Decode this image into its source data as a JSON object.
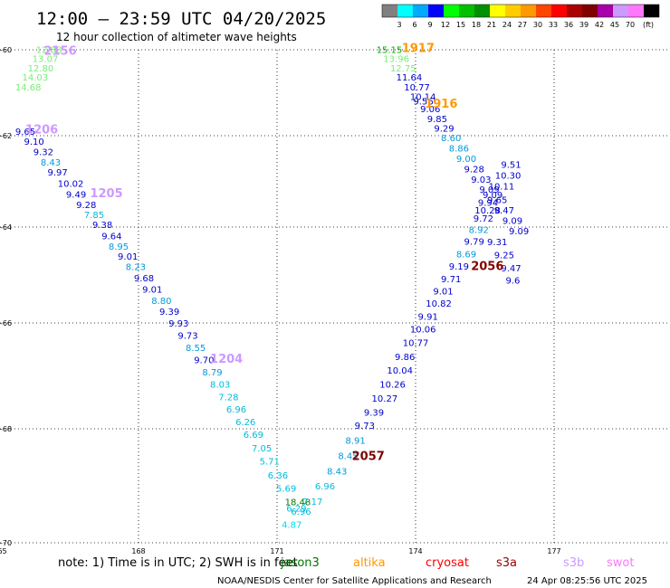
{
  "header": {
    "title": "12:00 – 23:59 UTC 04/20/2025",
    "subtitle": "12 hour collection of altimeter wave heights"
  },
  "legend": {
    "unit": "(ft)",
    "colors": [
      "#808080",
      "#00ffff",
      "#00aaff",
      "#0000ff",
      "#00ff00",
      "#00c000",
      "#009000",
      "#ffff00",
      "#ffcc00",
      "#ff9900",
      "#ff4400",
      "#ff0000",
      "#aa0000",
      "#800000",
      "#aa00aa",
      "#cc99ff",
      "#ff77ff",
      "#000000"
    ],
    "labels": [
      "3",
      "6",
      "9",
      "12",
      "15",
      "18",
      "21",
      "24",
      "27",
      "30",
      "33",
      "36",
      "39",
      "42",
      "45",
      "70"
    ]
  },
  "chart_data": {
    "type": "scatter",
    "xlim": [
      165,
      180
    ],
    "ylim": [
      -70,
      -60
    ],
    "x_ticks": [
      "165",
      "168",
      "171",
      "174",
      "177"
    ],
    "y_ticks": [
      "-60",
      "-62",
      "-64",
      "-66",
      "-68",
      "-70"
    ],
    "grid": true,
    "points": [
      {
        "lon": 165.78,
        "lat": -60.07,
        "v": "12.88",
        "c": "#77ee77"
      },
      {
        "lon": 165.7,
        "lat": -60.28,
        "v": "13.07",
        "c": "#77ee77"
      },
      {
        "lon": 165.6,
        "lat": -60.5,
        "v": "12.80",
        "c": "#77ee77"
      },
      {
        "lon": 165.48,
        "lat": -60.72,
        "v": "14.03",
        "c": "#77ee77"
      },
      {
        "lon": 165.33,
        "lat": -60.95,
        "v": "14.68",
        "c": "#77ee77"
      },
      {
        "lon": 165.33,
        "lat": -61.98,
        "v": "9.65",
        "c": "#0000cc"
      },
      {
        "lon": 165.52,
        "lat": -62.2,
        "v": "9.10",
        "c": "#0000cc"
      },
      {
        "lon": 165.72,
        "lat": -62.43,
        "v": "9.32",
        "c": "#0000cc"
      },
      {
        "lon": 165.88,
        "lat": -62.65,
        "v": "8.43",
        "c": "#0099dd"
      },
      {
        "lon": 166.03,
        "lat": -62.87,
        "v": "9.97",
        "c": "#0000cc"
      },
      {
        "lon": 166.25,
        "lat": -63.12,
        "v": "10.02",
        "c": "#0000cc"
      },
      {
        "lon": 166.43,
        "lat": -63.36,
        "v": "9.49",
        "c": "#0000cc"
      },
      {
        "lon": 166.65,
        "lat": -63.58,
        "v": "9.28",
        "c": "#0000cc"
      },
      {
        "lon": 166.82,
        "lat": -63.8,
        "v": "7.85",
        "c": "#00bbdd"
      },
      {
        "lon": 167.0,
        "lat": -64.02,
        "v": "9.38",
        "c": "#0000cc"
      },
      {
        "lon": 167.2,
        "lat": -64.25,
        "v": "9.64",
        "c": "#0000cc"
      },
      {
        "lon": 167.35,
        "lat": -64.47,
        "v": "8.95",
        "c": "#0099dd"
      },
      {
        "lon": 167.55,
        "lat": -64.68,
        "v": "9.01",
        "c": "#0000cc"
      },
      {
        "lon": 167.72,
        "lat": -64.9,
        "v": "8.23",
        "c": "#0099dd"
      },
      {
        "lon": 167.9,
        "lat": -65.13,
        "v": "9.68",
        "c": "#0000cc"
      },
      {
        "lon": 168.08,
        "lat": -65.37,
        "v": "9.01",
        "c": "#0000cc"
      },
      {
        "lon": 168.28,
        "lat": -65.6,
        "v": "8.80",
        "c": "#0099dd"
      },
      {
        "lon": 168.45,
        "lat": -65.83,
        "v": "9.39",
        "c": "#0000cc"
      },
      {
        "lon": 168.65,
        "lat": -66.07,
        "v": "9.93",
        "c": "#0000cc"
      },
      {
        "lon": 168.85,
        "lat": -66.3,
        "v": "9.73",
        "c": "#0000cc"
      },
      {
        "lon": 169.02,
        "lat": -66.53,
        "v": "8.55",
        "c": "#0099dd"
      },
      {
        "lon": 169.2,
        "lat": -66.76,
        "v": "9.70",
        "c": "#0000cc"
      },
      {
        "lon": 169.38,
        "lat": -66.99,
        "v": "8.79",
        "c": "#0099dd"
      },
      {
        "lon": 169.55,
        "lat": -67.22,
        "v": "8.03",
        "c": "#00bbdd"
      },
      {
        "lon": 169.73,
        "lat": -67.46,
        "v": "7.28",
        "c": "#00bbdd"
      },
      {
        "lon": 169.9,
        "lat": -67.69,
        "v": "6.96",
        "c": "#00bbdd"
      },
      {
        "lon": 170.1,
        "lat": -67.93,
        "v": "6.26",
        "c": "#00bbdd"
      },
      {
        "lon": 170.27,
        "lat": -68.16,
        "v": "6.69",
        "c": "#00bbdd"
      },
      {
        "lon": 170.45,
        "lat": -68.4,
        "v": "7.05",
        "c": "#00bbdd"
      },
      {
        "lon": 170.62,
        "lat": -68.63,
        "v": "5.71",
        "c": "#00bbdd"
      },
      {
        "lon": 170.8,
        "lat": -68.87,
        "v": "6.36",
        "c": "#00bbdd"
      },
      {
        "lon": 170.98,
        "lat": -69.1,
        "v": "5.69",
        "c": "#00bbdd"
      },
      {
        "lon": 171.17,
        "lat": -69.34,
        "v": "18.48",
        "c": "#007700"
      },
      {
        "lon": 171.2,
        "lat": -69.45,
        "v": "6.29",
        "c": "#00bbdd"
      },
      {
        "lon": 171.3,
        "lat": -69.51,
        "v": "6.96",
        "c": "#00bbdd"
      },
      {
        "lon": 171.1,
        "lat": -69.74,
        "v": "4.87",
        "c": "#00ddee"
      },
      {
        "lon": 171.55,
        "lat": -69.33,
        "v": "7.17",
        "c": "#00bbdd"
      },
      {
        "lon": 171.82,
        "lat": -69.06,
        "v": "6.96",
        "c": "#00bbdd"
      },
      {
        "lon": 172.08,
        "lat": -68.8,
        "v": "8.43",
        "c": "#0099dd"
      },
      {
        "lon": 172.32,
        "lat": -68.53,
        "v": "8.45",
        "c": "#0099dd"
      },
      {
        "lon": 172.48,
        "lat": -68.26,
        "v": "8.91",
        "c": "#0099dd"
      },
      {
        "lon": 172.68,
        "lat": -68.0,
        "v": "9.73",
        "c": "#0000cc"
      },
      {
        "lon": 172.88,
        "lat": -67.75,
        "v": "9.39",
        "c": "#0000cc"
      },
      {
        "lon": 173.05,
        "lat": -67.49,
        "v": "10.27",
        "c": "#0000cc"
      },
      {
        "lon": 173.22,
        "lat": -67.22,
        "v": "10.26",
        "c": "#0000cc"
      },
      {
        "lon": 173.38,
        "lat": -66.96,
        "v": "10.04",
        "c": "#0000cc"
      },
      {
        "lon": 173.55,
        "lat": -66.7,
        "v": "9.86",
        "c": "#0000cc"
      },
      {
        "lon": 173.72,
        "lat": -66.44,
        "v": "10.77",
        "c": "#0000cc"
      },
      {
        "lon": 173.88,
        "lat": -66.18,
        "v": "10.06",
        "c": "#0000cc"
      },
      {
        "lon": 174.05,
        "lat": -65.93,
        "v": "9.91",
        "c": "#0000cc"
      },
      {
        "lon": 174.22,
        "lat": -65.66,
        "v": "10.82",
        "c": "#0000cc"
      },
      {
        "lon": 174.38,
        "lat": -65.41,
        "v": "9.01",
        "c": "#0000cc"
      },
      {
        "lon": 174.55,
        "lat": -65.15,
        "v": "9.71",
        "c": "#0000cc"
      },
      {
        "lon": 174.72,
        "lat": -64.89,
        "v": "9.19",
        "c": "#0000cc"
      },
      {
        "lon": 174.88,
        "lat": -64.63,
        "v": "8.69",
        "c": "#0099dd"
      },
      {
        "lon": 175.05,
        "lat": -64.37,
        "v": "9.79",
        "c": "#0000cc"
      },
      {
        "lon": 175.15,
        "lat": -64.12,
        "v": "8.92",
        "c": "#0099dd"
      },
      {
        "lon": 175.25,
        "lat": -63.88,
        "v": "9.72",
        "c": "#0000cc"
      },
      {
        "lon": 175.28,
        "lat": -63.7,
        "v": "10.28",
        "c": "#0000cc"
      },
      {
        "lon": 175.35,
        "lat": -63.53,
        "v": "9.94",
        "c": "#0000cc"
      },
      {
        "lon": 175.45,
        "lat": -63.37,
        "v": "9.09",
        "c": "#0000cc"
      },
      {
        "lon": 175.58,
        "lat": -63.18,
        "v": "10.11",
        "c": "#0000cc"
      },
      {
        "lon": 175.72,
        "lat": -62.94,
        "v": "10.30",
        "c": "#0000cc"
      },
      {
        "lon": 175.85,
        "lat": -62.7,
        "v": "9.51",
        "c": "#0000cc"
      },
      {
        "lon": 175.55,
        "lat": -64.38,
        "v": "9.31",
        "c": "#0000cc"
      },
      {
        "lon": 175.7,
        "lat": -64.65,
        "v": "9.25",
        "c": "#0000cc"
      },
      {
        "lon": 175.85,
        "lat": -64.92,
        "v": "9.47",
        "c": "#0000cc"
      },
      {
        "lon": 175.95,
        "lat": -65.18,
        "v": "9.6",
        "c": "#0000cc"
      },
      {
        "lon": 173.15,
        "lat": -60.07,
        "v": "15.15",
        "c": "#00aa00"
      },
      {
        "lon": 173.3,
        "lat": -60.28,
        "v": "13.96",
        "c": "#77ee77"
      },
      {
        "lon": 173.45,
        "lat": -60.5,
        "v": "12.75",
        "c": "#77ee77"
      },
      {
        "lon": 173.58,
        "lat": -60.72,
        "v": "11.64",
        "c": "#0000cc"
      },
      {
        "lon": 173.75,
        "lat": -60.95,
        "v": "10.77",
        "c": "#0000cc"
      },
      {
        "lon": 173.88,
        "lat": -61.17,
        "v": "10.14",
        "c": "#0000cc"
      },
      {
        "lon": 173.95,
        "lat": -61.27,
        "v": "9.56",
        "c": "#0000cc"
      },
      {
        "lon": 174.1,
        "lat": -61.45,
        "v": "9.06",
        "c": "#0000cc"
      },
      {
        "lon": 174.25,
        "lat": -61.68,
        "v": "9.85",
        "c": "#0000cc"
      },
      {
        "lon": 174.4,
        "lat": -61.9,
        "v": "9.29",
        "c": "#0000cc"
      },
      {
        "lon": 174.55,
        "lat": -62.12,
        "v": "8.60",
        "c": "#0099dd"
      },
      {
        "lon": 174.72,
        "lat": -62.35,
        "v": "8.86",
        "c": "#0099dd"
      },
      {
        "lon": 174.88,
        "lat": -62.57,
        "v": "9.00",
        "c": "#0099dd"
      },
      {
        "lon": 175.05,
        "lat": -62.8,
        "v": "9.28",
        "c": "#0000cc"
      },
      {
        "lon": 175.2,
        "lat": -63.03,
        "v": "9.03",
        "c": "#0000cc"
      },
      {
        "lon": 175.38,
        "lat": -63.25,
        "v": "9.09",
        "c": "#0000cc"
      },
      {
        "lon": 175.55,
        "lat": -63.48,
        "v": "9.65",
        "c": "#0000cc"
      },
      {
        "lon": 175.7,
        "lat": -63.7,
        "v": "9.47",
        "c": "#0000cc"
      },
      {
        "lon": 175.88,
        "lat": -63.93,
        "v": "9.09",
        "c": "#0000cc"
      },
      {
        "lon": 176.02,
        "lat": -64.15,
        "v": "9.09",
        "c": "#0000cc"
      }
    ],
    "pass_labels": [
      {
        "lon": 165.95,
        "lat": -60.12,
        "text": "2156",
        "c": "#cc99ff"
      },
      {
        "lon": 165.55,
        "lat": -61.95,
        "text": "1206",
        "c": "#cc99ff"
      },
      {
        "lon": 166.95,
        "lat": -63.35,
        "text": "1205",
        "c": "#cc99ff"
      },
      {
        "lon": 169.55,
        "lat": -66.75,
        "text": "1204",
        "c": "#cc99ff"
      },
      {
        "lon": 173.7,
        "lat": -60.05,
        "text": "1917",
        "c": "#ff9900"
      },
      {
        "lon": 174.2,
        "lat": -61.35,
        "text": "1916",
        "c": "#ff9900"
      },
      {
        "lon": 175.2,
        "lat": -64.9,
        "text": "2056",
        "c": "#800000"
      },
      {
        "lon": 172.62,
        "lat": -68.55,
        "text": "2057",
        "c": "#800000"
      }
    ]
  },
  "footer": {
    "note": "note:  1) Time is in UTC; 2) SWH is in feet",
    "satellites": [
      {
        "name": "jason3",
        "color": "#007700"
      },
      {
        "name": "altika",
        "color": "#ff9900"
      },
      {
        "name": "cryosat",
        "color": "#ff0000"
      },
      {
        "name": "s3a",
        "color": "#990000"
      },
      {
        "name": "s3b",
        "color": "#cc99ff"
      },
      {
        "name": "swot",
        "color": "#ff77ff"
      }
    ],
    "credit": "NOAA/NESDIS Center for Satellite Applications and Research",
    "timestamp": "24 Apr 08:25:56 UTC 2025"
  }
}
